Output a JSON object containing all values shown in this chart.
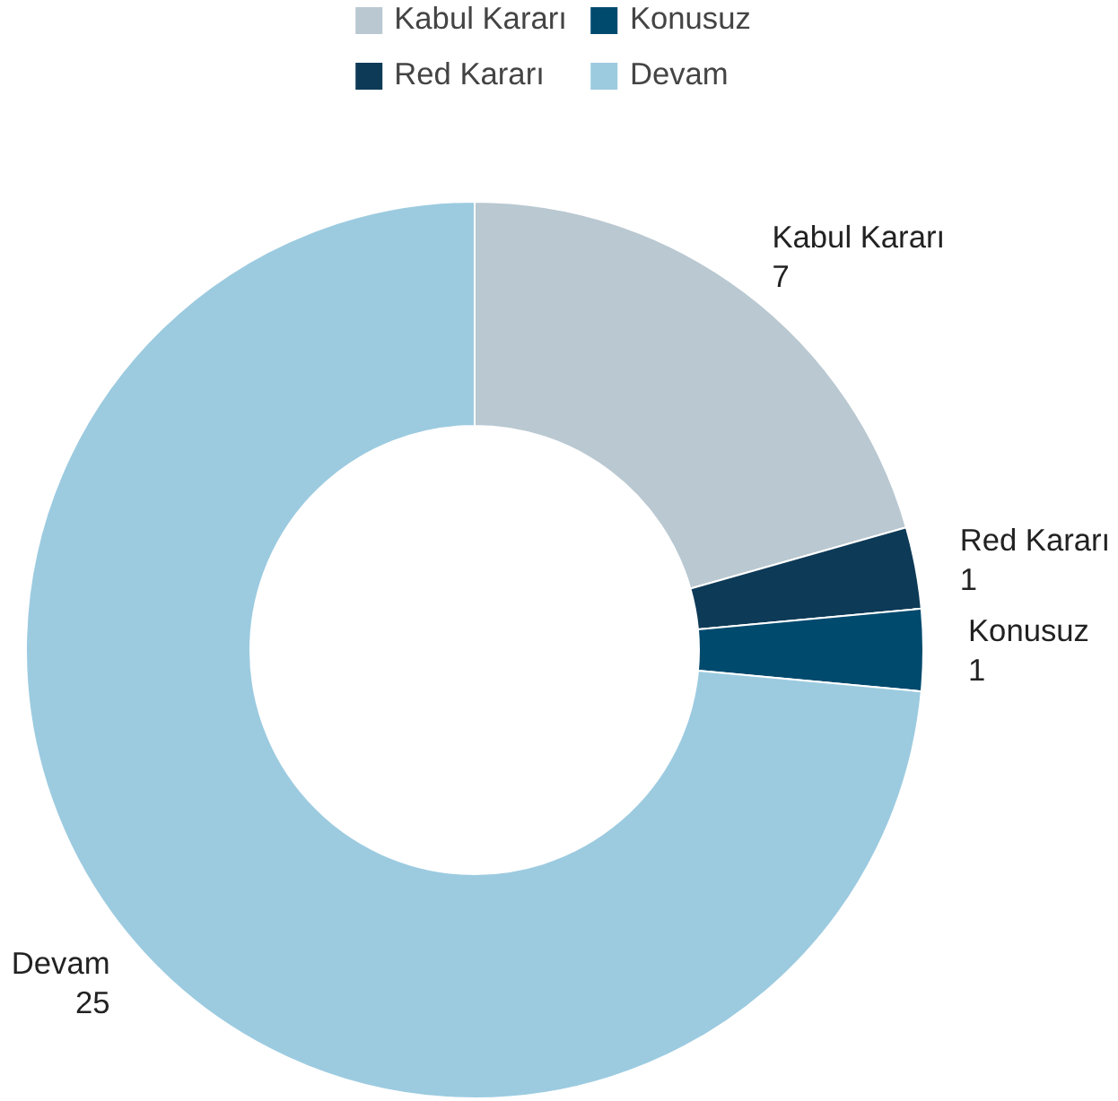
{
  "chart_data": {
    "type": "donut",
    "categories": [
      "Kabul Kararı",
      "Red Kararı",
      "Konusuz",
      "Devam"
    ],
    "values": [
      7,
      1,
      1,
      25
    ],
    "colors": [
      "#b9c8d1",
      "#0d3a57",
      "#004a6e",
      "#9ccbe0"
    ],
    "data_labels": true,
    "legend": "top"
  }
}
